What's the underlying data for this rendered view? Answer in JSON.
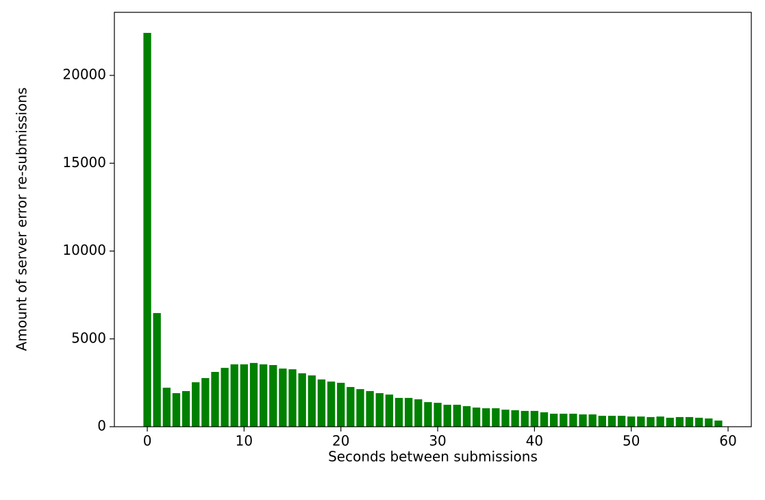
{
  "chart_data": {
    "type": "bar",
    "xlabel": "Seconds between submissions",
    "ylabel": "Amount of server error re-submissions",
    "color": "#008000",
    "x": [
      0,
      1,
      2,
      3,
      4,
      5,
      6,
      7,
      8,
      9,
      10,
      11,
      12,
      13,
      14,
      15,
      16,
      17,
      18,
      19,
      20,
      21,
      22,
      23,
      24,
      25,
      26,
      27,
      28,
      29,
      30,
      31,
      32,
      33,
      34,
      35,
      36,
      37,
      38,
      39,
      40,
      41,
      42,
      43,
      44,
      45,
      46,
      47,
      48,
      49,
      50,
      51,
      52,
      53,
      54,
      55,
      56,
      57,
      58,
      59
    ],
    "values": [
      22420,
      6470,
      2220,
      1910,
      2030,
      2530,
      2770,
      3120,
      3350,
      3550,
      3550,
      3630,
      3550,
      3510,
      3310,
      3270,
      3040,
      2920,
      2690,
      2570,
      2500,
      2260,
      2140,
      2030,
      1910,
      1830,
      1640,
      1640,
      1560,
      1400,
      1360,
      1250,
      1250,
      1170,
      1090,
      1050,
      1050,
      970,
      940,
      900,
      900,
      820,
      740,
      740,
      740,
      700,
      700,
      620,
      620,
      620,
      580,
      580,
      550,
      580,
      510,
      550,
      550,
      510,
      470,
      350
    ],
    "xlim": [
      -3.4,
      62.4
    ],
    "ylim": [
      0,
      23590
    ],
    "xticks": [
      0,
      10,
      20,
      30,
      40,
      50,
      60
    ],
    "yticks": [
      0,
      5000,
      10000,
      15000,
      20000
    ],
    "grid": false
  }
}
